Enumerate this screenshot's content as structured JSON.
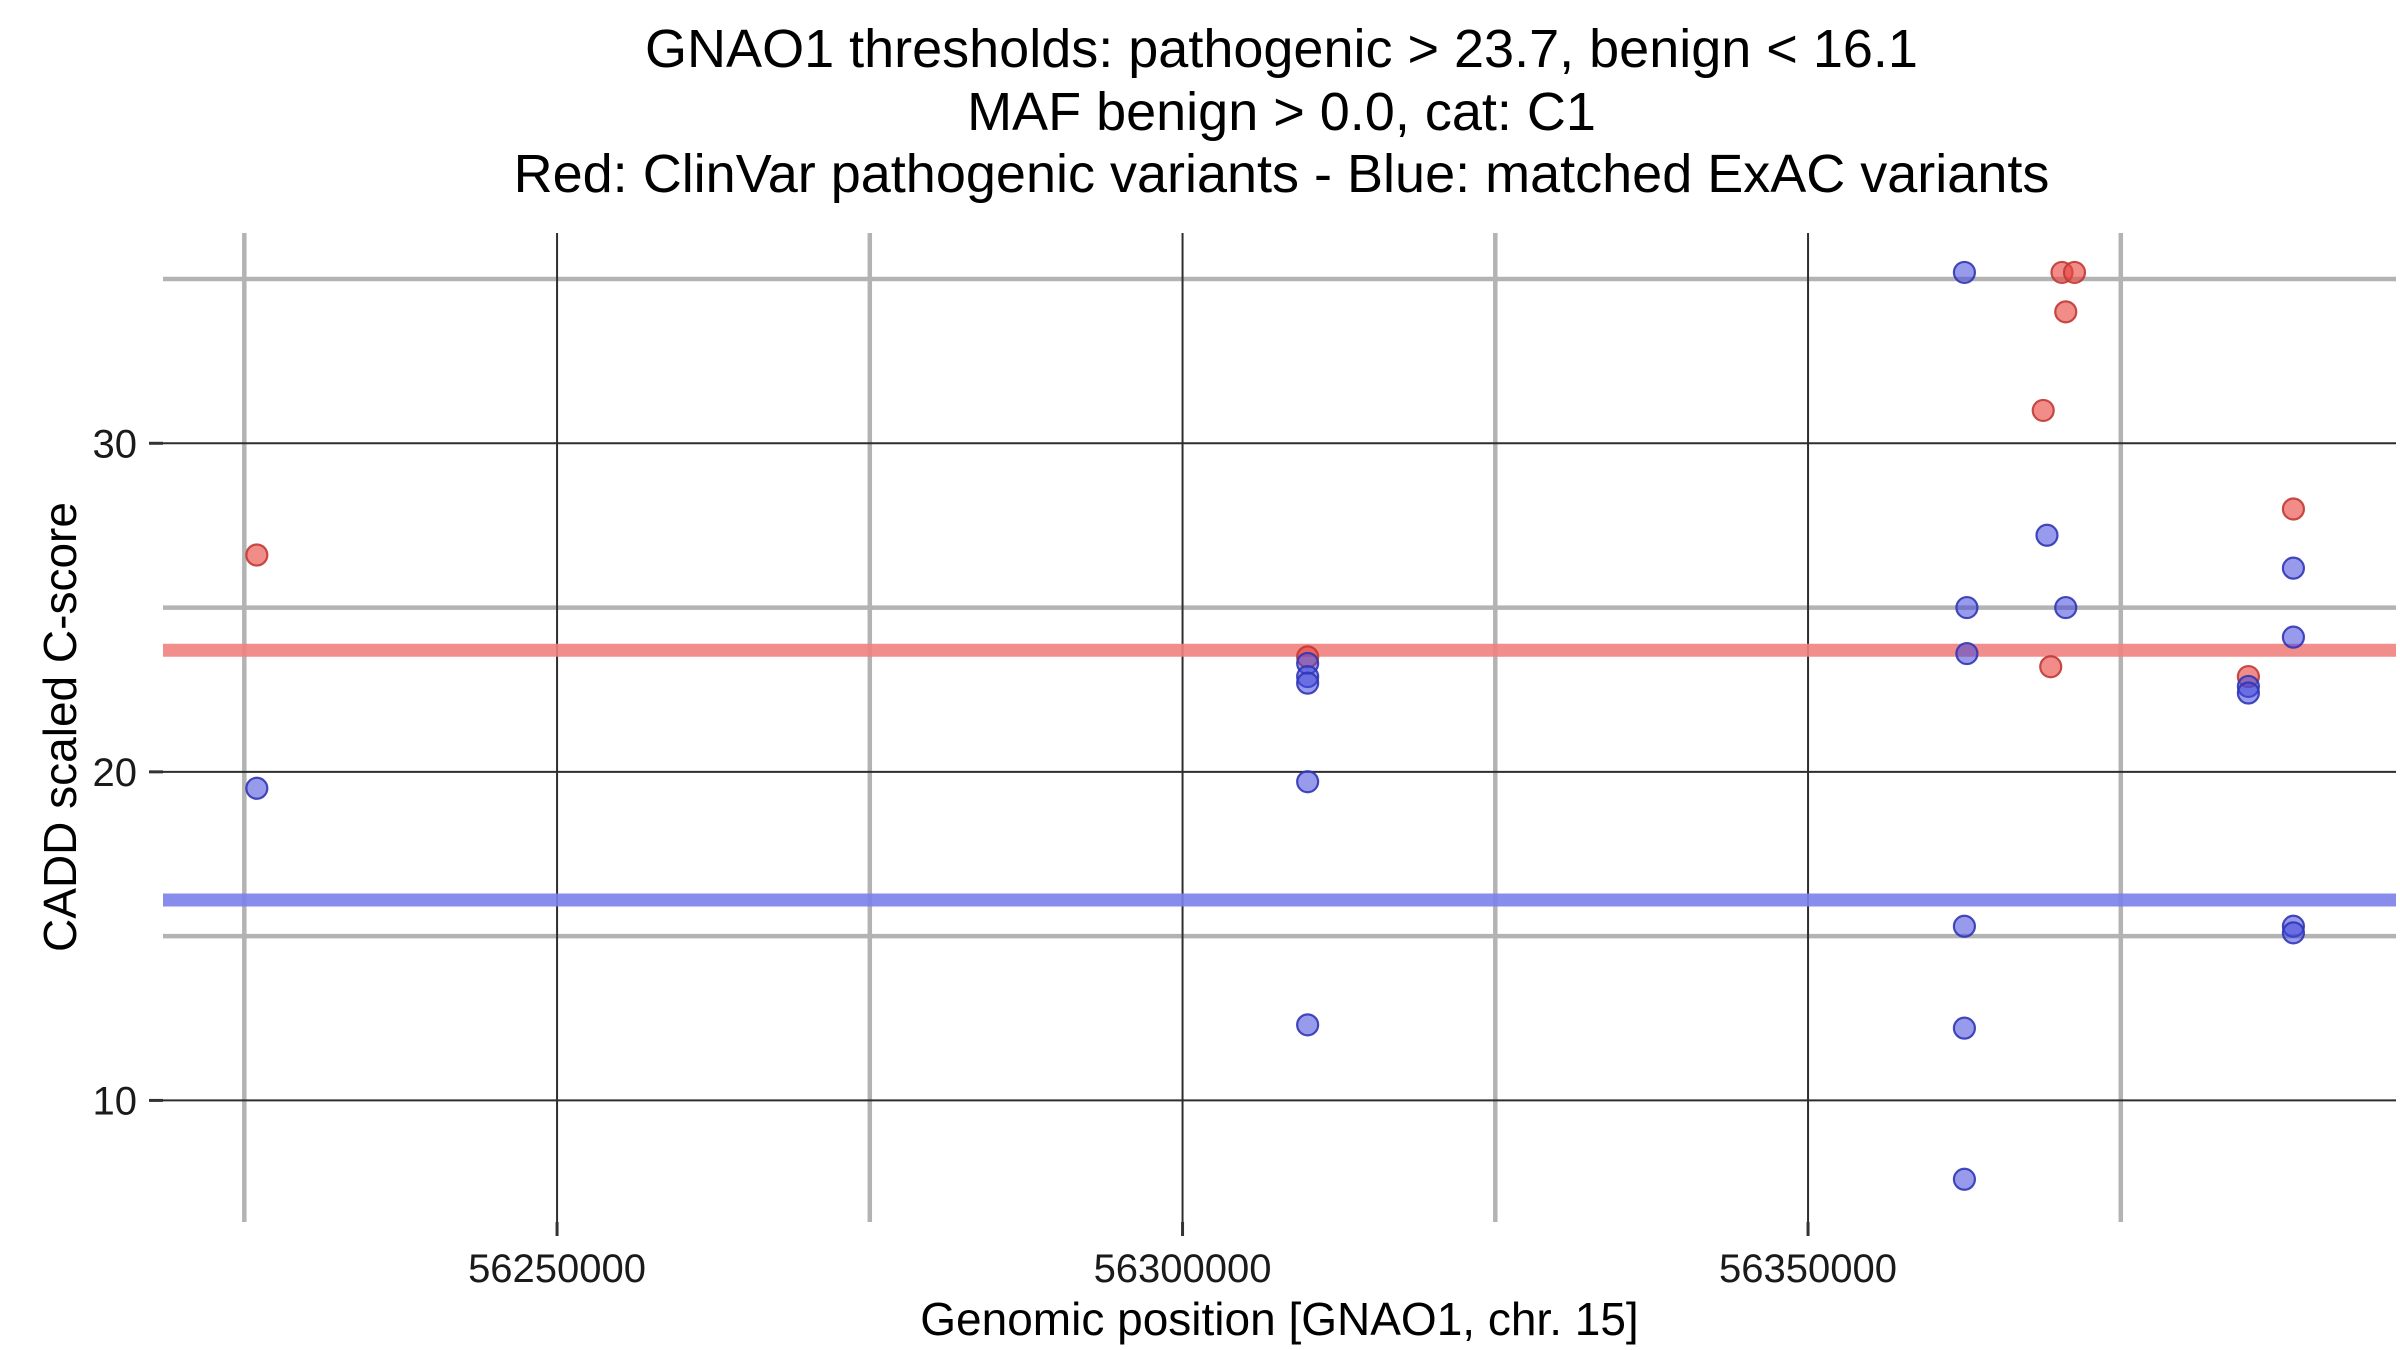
{
  "title": {
    "line1": "GNAO1 thresholds: pathogenic > 23.7, benign < 16.1",
    "line2": "MAF benign > 0.0, cat: C1",
    "line3": "Red: ClinVar pathogenic variants - Blue: matched ExAC variants"
  },
  "chart_data": {
    "type": "scatter",
    "title": "GNAO1 thresholds: pathogenic > 23.7, benign < 16.1\nMAF benign > 0.0, cat: C1\nRed: ClinVar pathogenic variants - Blue: matched ExAC variants",
    "xlabel": "Genomic position [GNAO1, chr. 15]",
    "ylabel": "CADD scaled C-score",
    "xlim": [
      56218500,
      56397000
    ],
    "ylim": [
      6.3,
      36.4
    ],
    "x_major_ticks": [
      56250000,
      56300000,
      56350000
    ],
    "x_tick_labels": [
      "56250000",
      "56300000",
      "56350000"
    ],
    "x_minor_ticks": [
      56225000,
      56275000,
      56325000,
      56375000
    ],
    "y_major_ticks": [
      10,
      20,
      30
    ],
    "y_tick_labels": [
      "10",
      "20",
      "30"
    ],
    "y_minor_ticks": [
      15,
      25,
      35
    ],
    "grid": true,
    "legend_position": "none",
    "style": {
      "major_grid_color": "#2e2e2e",
      "minor_grid_color": "#b3b3b3",
      "tick_color": "#333333",
      "tick_label_color": "#1a1a1a"
    },
    "thresholds": [
      {
        "name": "pathogenic",
        "label": "pathogenic > 23.7",
        "value": 23.7,
        "color": "#f0817d"
      },
      {
        "name": "benign",
        "label": "benign < 16.1",
        "value": 16.1,
        "color": "#7b80e8"
      }
    ],
    "series": [
      {
        "name": "ClinVar pathogenic variants",
        "point_name": "pathogenic-variant-point",
        "fill": "#e8453f",
        "fill_opacity": 0.62,
        "stroke": "#c03a35",
        "points": [
          [
            56226000,
            26.6
          ],
          [
            56310000,
            23.5
          ],
          [
            56370300,
            35.2
          ],
          [
            56371300,
            35.2
          ],
          [
            56370600,
            34.0
          ],
          [
            56368800,
            31.0
          ],
          [
            56369400,
            23.2
          ],
          [
            56385200,
            22.9
          ],
          [
            56388800,
            28.0
          ]
        ]
      },
      {
        "name": "matched ExAC variants",
        "point_name": "exac-variant-point",
        "fill": "#4348dd",
        "fill_opacity": 0.55,
        "stroke": "#3036b5",
        "points": [
          [
            56226000,
            19.5
          ],
          [
            56310000,
            23.3
          ],
          [
            56310000,
            22.9
          ],
          [
            56310000,
            22.7
          ],
          [
            56310000,
            19.7
          ],
          [
            56310000,
            12.3
          ],
          [
            56362500,
            35.2
          ],
          [
            56362700,
            25.0
          ],
          [
            56362700,
            23.6
          ],
          [
            56362500,
            15.3
          ],
          [
            56362500,
            12.2
          ],
          [
            56362500,
            7.6
          ],
          [
            56369100,
            27.2
          ],
          [
            56370600,
            25.0
          ],
          [
            56385200,
            22.6
          ],
          [
            56385200,
            22.4
          ],
          [
            56388800,
            26.2
          ],
          [
            56388800,
            24.1
          ],
          [
            56388800,
            15.3
          ],
          [
            56388800,
            15.1
          ]
        ]
      }
    ]
  }
}
